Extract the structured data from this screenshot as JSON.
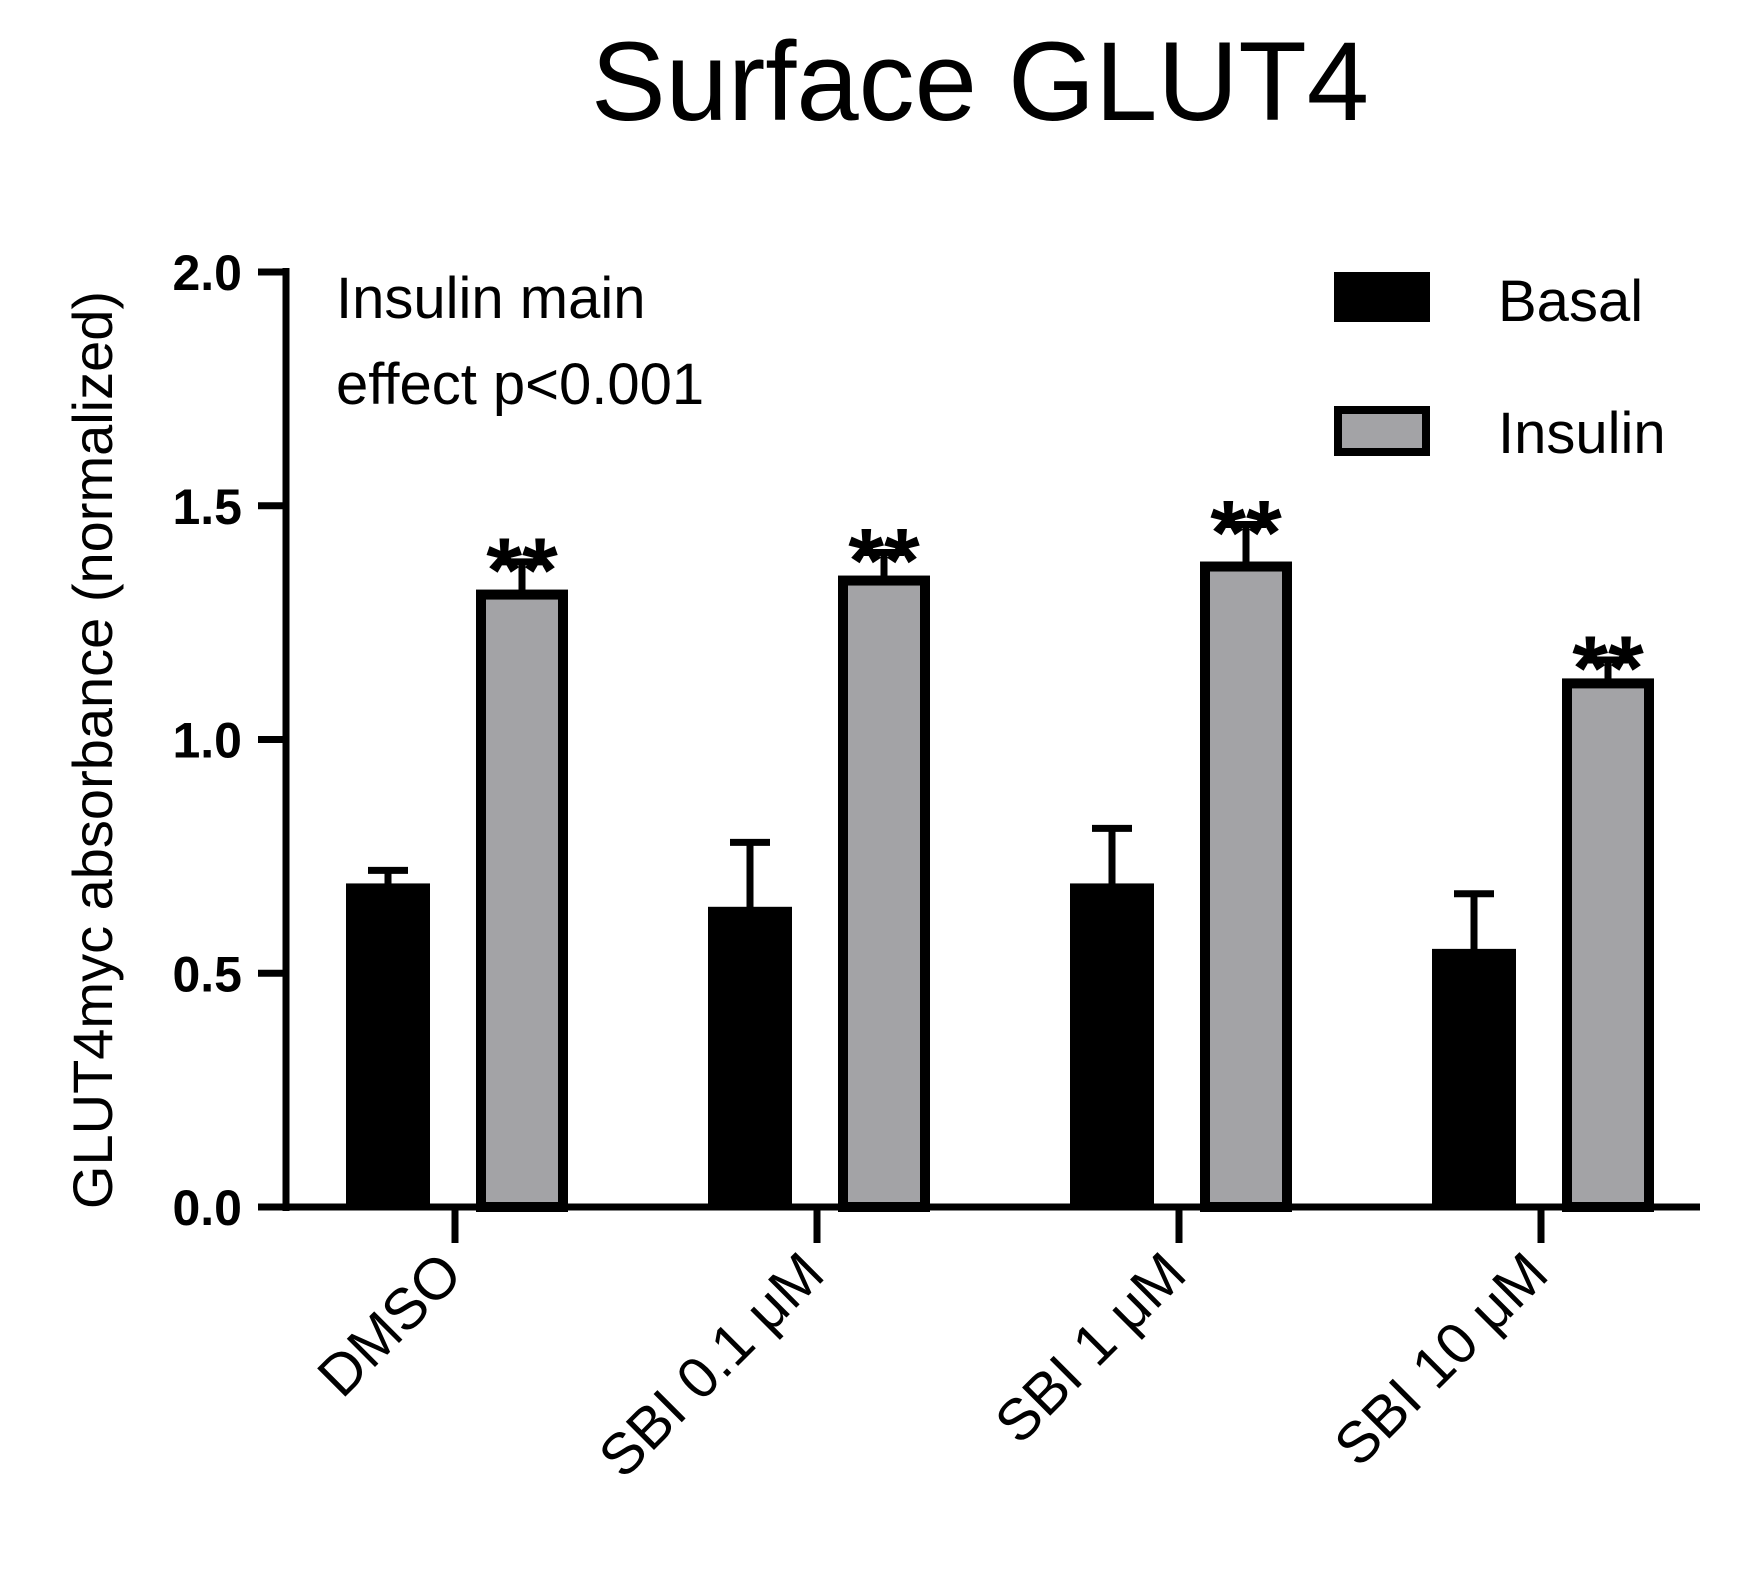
{
  "chart_data": {
    "type": "bar",
    "title": "Surface GLUT4",
    "ylabel": "GLUT4myc absorbance (normalized)",
    "xlabel": "",
    "ylim": [
      0,
      2.0
    ],
    "yticks": [
      "0.0",
      "0.5",
      "1.0",
      "1.5",
      "2.0"
    ],
    "categories": [
      "DMSO",
      "SBI 0.1 μM",
      "SBI 1 μM",
      "SBI 10 μM"
    ],
    "series": [
      {
        "name": "Basal",
        "color": "#000000",
        "values": [
          0.69,
          0.64,
          0.69,
          0.55
        ],
        "errors": [
          0.03,
          0.14,
          0.12,
          0.12
        ],
        "significance": [
          "",
          "",
          "",
          ""
        ]
      },
      {
        "name": "Insulin",
        "color": "#a3a3a6",
        "values": [
          1.31,
          1.34,
          1.37,
          1.12
        ],
        "errors": [
          0.07,
          0.06,
          0.09,
          0.05
        ],
        "significance": [
          "**",
          "**",
          "**",
          "**"
        ]
      }
    ],
    "annotation": [
      "Insulin main",
      "effect p<0.001"
    ],
    "legend_position": "top-right"
  }
}
